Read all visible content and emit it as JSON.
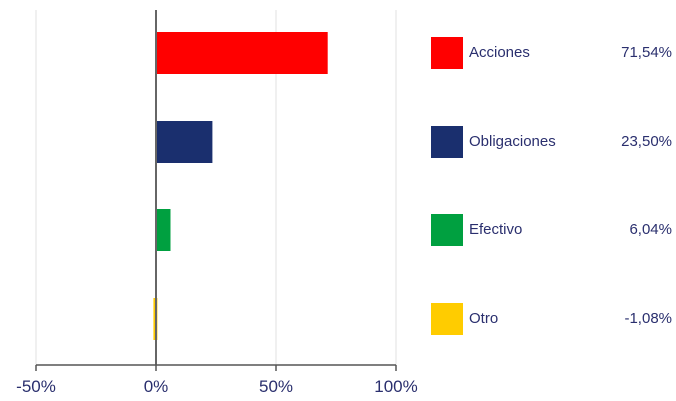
{
  "chart_data": {
    "type": "bar",
    "orientation": "horizontal",
    "categories": [
      "Acciones",
      "Obligaciones",
      "Efectivo",
      "Otro"
    ],
    "values": [
      71.54,
      23.5,
      6.04,
      -1.08
    ],
    "value_labels": [
      "71,54%",
      "23,50%",
      "6,04%",
      "-1,08%"
    ],
    "colors": [
      "#ff0000",
      "#1a2f6e",
      "#00a040",
      "#ffcc00"
    ],
    "xlim": [
      -50,
      100
    ],
    "xticks": [
      -50,
      0,
      50,
      100
    ],
    "xtick_labels": [
      "-50%",
      "0%",
      "50%",
      "100%"
    ],
    "grid": true,
    "legend_placement": "right"
  }
}
